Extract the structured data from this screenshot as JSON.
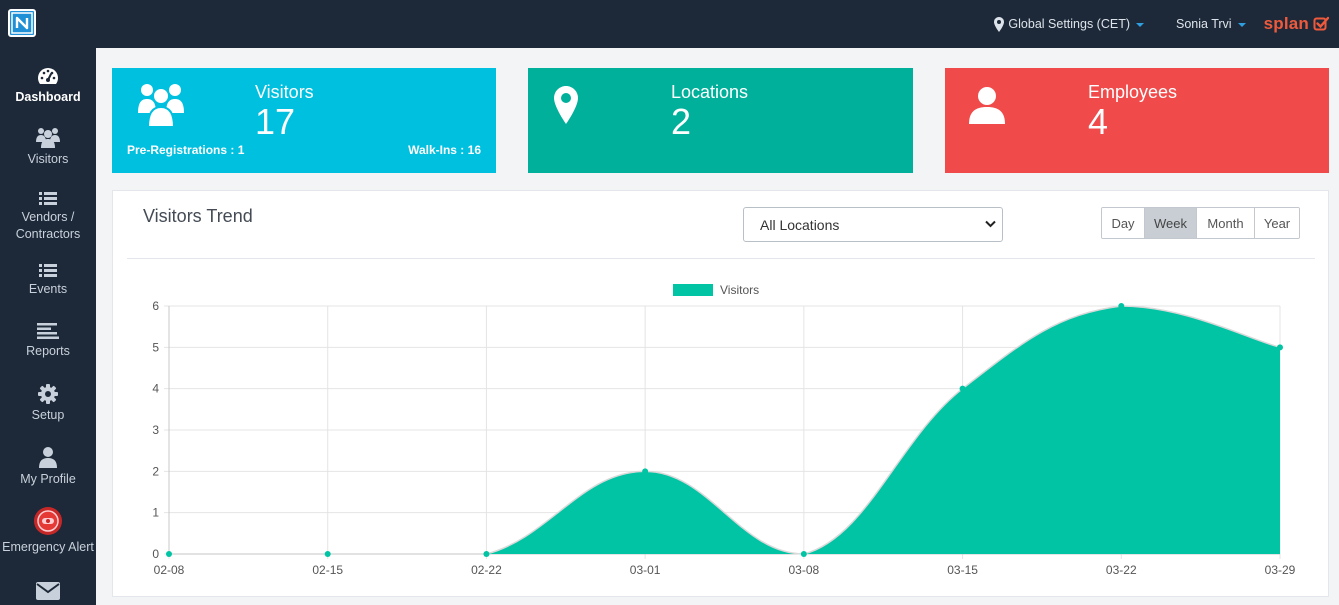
{
  "topbar": {
    "global_settings": "Global Settings (CET)",
    "user_name": "Sonia Trvi",
    "brand": "splan"
  },
  "sidebar": {
    "items": [
      {
        "label": "Dashboard",
        "icon": "dashboard-gauge-icon",
        "active": true
      },
      {
        "label": "Visitors",
        "icon": "users-icon"
      },
      {
        "label": "Vendors /\nContractors",
        "icon": "list-icon"
      },
      {
        "label": "Events",
        "icon": "list-icon"
      },
      {
        "label": "Reports",
        "icon": "align-left-icon"
      },
      {
        "label": "Setup",
        "icon": "gear-icon"
      },
      {
        "label": "My Profile",
        "icon": "user-icon"
      },
      {
        "label": "Emergency Alert",
        "icon": "alarm-icon"
      },
      {
        "label": "",
        "icon": "envelope-icon"
      }
    ]
  },
  "stats": {
    "visitors": {
      "title": "Visitors",
      "value": "17",
      "pre_registrations": "Pre-Registrations : 1",
      "walk_ins": "Walk-Ins : 16",
      "color": "#00c0e0"
    },
    "locations": {
      "title": "Locations",
      "value": "2",
      "color": "#00b09a"
    },
    "employees": {
      "title": "Employees",
      "value": "4",
      "color": "#f04a4a"
    }
  },
  "trend": {
    "title": "Visitors Trend",
    "location_select": "All Locations",
    "ranges": [
      "Day",
      "Week",
      "Month",
      "Year"
    ],
    "active_range": "Week"
  },
  "chart_data": {
    "type": "area",
    "x": [
      "02-08",
      "02-15",
      "02-22",
      "03-01",
      "03-08",
      "03-15",
      "03-22",
      "03-29"
    ],
    "series": [
      {
        "name": "Visitors",
        "values": [
          0,
          0,
          0,
          2,
          0,
          4,
          6,
          5
        ],
        "color": "#00c4a4"
      }
    ],
    "ylim": [
      0,
      6
    ],
    "yticks": [
      0,
      1,
      2,
      3,
      4,
      5,
      6
    ],
    "grid": true,
    "legend": "top-center",
    "smooth": true
  }
}
